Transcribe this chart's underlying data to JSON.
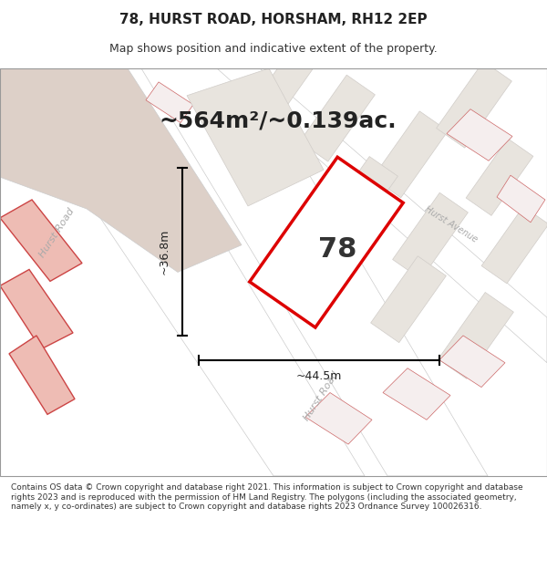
{
  "title": "78, HURST ROAD, HORSHAM, RH12 2EP",
  "subtitle": "Map shows position and indicative extent of the property.",
  "area_text": "~564m²/~0.139ac.",
  "number_label": "78",
  "dim_width": "~44.5m",
  "dim_height": "~36.8m",
  "footer": "Contains OS data © Crown copyright and database right 2021. This information is subject to Crown copyright and database rights 2023 and is reproduced with the permission of HM Land Registry. The polygons (including the associated geometry, namely x, y co-ordinates) are subject to Crown copyright and database rights 2023 Ordnance Survey 100026316.",
  "bg_color": "#f0ece8",
  "road_color": "#ffffff",
  "red_outline": "#dd0000",
  "title_fontsize": 11,
  "subtitle_fontsize": 9,
  "area_fontsize": 18,
  "footer_fontsize": 6.5,
  "road_label_color": "#aaaaaa",
  "dim_fontsize": 9
}
